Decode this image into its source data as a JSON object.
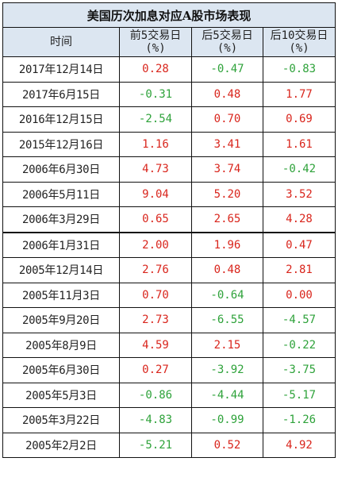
{
  "table": {
    "title": "美国历次加息对应A股市场表现",
    "headers": [
      {
        "line1": "时间",
        "line2": ""
      },
      {
        "line1": "前5交易日",
        "line2": "(%)"
      },
      {
        "line1": "后5交易日",
        "line2": "(%)"
      },
      {
        "line1": "后10交易日",
        "line2": "(%)"
      }
    ],
    "rows": [
      {
        "date": "2017年12月14日",
        "pre5": "0.28",
        "post5": "-0.47",
        "post10": "-0.83"
      },
      {
        "date": "2017年6月15日",
        "pre5": "-0.31",
        "post5": "0.48",
        "post10": "1.77"
      },
      {
        "date": "2016年12月15日",
        "pre5": "-2.54",
        "post5": "0.70",
        "post10": "0.69"
      },
      {
        "date": "2015年12月16日",
        "pre5": "1.16",
        "post5": "3.41",
        "post10": "1.61"
      },
      {
        "date": "2006年6月30日",
        "pre5": "4.73",
        "post5": "3.74",
        "post10": "-0.42"
      },
      {
        "date": "2006年5月11日",
        "pre5": "9.04",
        "post5": "5.20",
        "post10": "3.52"
      },
      {
        "date": "2006年3月29日",
        "pre5": "0.65",
        "post5": "2.65",
        "post10": "4.28"
      },
      {
        "date": "2006年1月31日",
        "pre5": "2.00",
        "post5": "1.96",
        "post10": "0.47"
      },
      {
        "date": "2005年12月14日",
        "pre5": "2.76",
        "post5": "0.48",
        "post10": "2.81"
      },
      {
        "date": "2005年11月3日",
        "pre5": "0.70",
        "post5": "-0.64",
        "post10": "0.00"
      },
      {
        "date": "2005年9月20日",
        "pre5": "2.73",
        "post5": "-6.55",
        "post10": "-4.57"
      },
      {
        "date": "2005年8月9日",
        "pre5": "4.59",
        "post5": "2.15",
        "post10": "-0.22"
      },
      {
        "date": "2005年6月30日",
        "pre5": "0.27",
        "post5": "-3.92",
        "post10": "-3.75"
      },
      {
        "date": "2005年5月3日",
        "pre5": "-0.86",
        "post5": "-4.44",
        "post10": "-5.17"
      },
      {
        "date": "2005年3月22日",
        "pre5": "-4.83",
        "post5": "-0.99",
        "post10": "-1.26"
      },
      {
        "date": "2005年2月2日",
        "pre5": "-5.21",
        "post5": "0.52",
        "post10": "4.92"
      }
    ],
    "colors": {
      "positive": "#d9251c",
      "negative": "#2ea23a",
      "header_bg": "#dce6f1"
    }
  }
}
